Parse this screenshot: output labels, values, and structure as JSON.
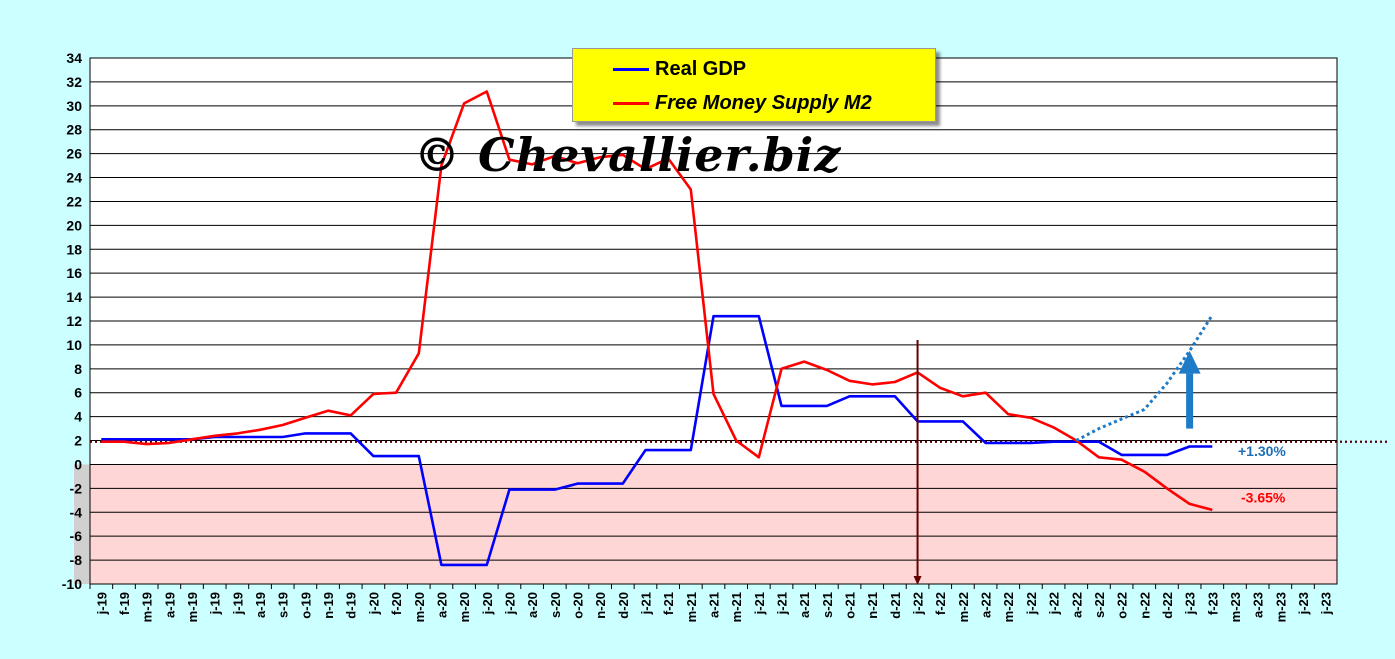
{
  "chart_data": {
    "type": "line",
    "categories": [
      "j-19",
      "f-19",
      "m-19",
      "a-19",
      "m-19",
      "j-19",
      "j-19",
      "a-19",
      "s-19",
      "o-19",
      "n-19",
      "d-19",
      "j-20",
      "f-20",
      "m-20",
      "a-20",
      "m-20",
      "j-20",
      "j-20",
      "a-20",
      "s-20",
      "o-20",
      "n-20",
      "d-20",
      "j-21",
      "f-21",
      "m-21",
      "a-21",
      "m-21",
      "j-21",
      "j-21",
      "a-21",
      "s-21",
      "o-21",
      "n-21",
      "d-21",
      "j-22",
      "f-22",
      "m-22",
      "a-22",
      "m-22",
      "j-22",
      "j-22",
      "a-22",
      "s-22",
      "o-22",
      "n-22",
      "d-22",
      "j-23",
      "f-23",
      "m-23",
      "a-23",
      "m-23",
      "j-23",
      "j-23"
    ],
    "ylim": [
      -10,
      34
    ],
    "yticks": [
      34,
      32,
      30,
      28,
      26,
      24,
      22,
      20,
      18,
      16,
      14,
      12,
      10,
      8,
      6,
      4,
      2,
      0,
      -2,
      -4,
      -6,
      -8,
      -10
    ],
    "reference_line": 1.9,
    "event_marker_category": "j-22",
    "series": [
      {
        "name": "Real GDP",
        "color": "#0000ff",
        "values": [
          2.1,
          2.1,
          2.1,
          2.1,
          2.1,
          2.3,
          2.3,
          2.3,
          2.3,
          2.6,
          2.6,
          2.6,
          0.7,
          0.7,
          0.7,
          -8.4,
          -8.4,
          -8.4,
          -2.1,
          -2.1,
          -2.1,
          -1.6,
          -1.6,
          -1.6,
          1.2,
          1.2,
          1.2,
          12.4,
          12.4,
          12.4,
          4.9,
          4.9,
          4.9,
          5.7,
          5.7,
          5.7,
          3.6,
          3.6,
          3.6,
          1.8,
          1.8,
          1.8,
          1.9,
          1.9,
          1.9,
          0.8,
          0.8,
          0.8,
          1.5,
          1.5,
          null,
          null,
          null,
          null,
          null
        ]
      },
      {
        "name": "Free Money Supply M2",
        "color": "#ff0000",
        "values": [
          1.9,
          1.9,
          1.7,
          1.8,
          2.1,
          2.4,
          2.6,
          2.9,
          3.3,
          3.9,
          4.5,
          4.1,
          5.9,
          6.0,
          9.3,
          25.0,
          30.2,
          31.2,
          25.5,
          25.1,
          25.8,
          25.2,
          25.7,
          25.9,
          24.7,
          25.6,
          23.0,
          5.9,
          2.0,
          0.6,
          8.0,
          8.6,
          7.9,
          7.0,
          6.7,
          6.9,
          7.7,
          6.4,
          5.7,
          6.0,
          4.2,
          3.9,
          3.1,
          2.0,
          0.6,
          0.4,
          -0.6,
          -2.0,
          -3.3,
          -3.8,
          null,
          null,
          null,
          null,
          null
        ]
      }
    ],
    "projection": {
      "color": "#1e7bc8",
      "x_start": 43.5,
      "points": [
        [
          43.5,
          2.0
        ],
        [
          44.5,
          3.0
        ],
        [
          45.5,
          3.8
        ],
        [
          46.5,
          4.6
        ],
        [
          47.5,
          6.8
        ],
        [
          48.5,
          9.5
        ],
        [
          49.5,
          12.5
        ]
      ]
    },
    "annotations": [
      {
        "text": "+1.30%",
        "color": "#1e6fb5"
      },
      {
        "text": "-3.65%",
        "color": "#ff0000"
      }
    ],
    "legend": {
      "gdp_label": "Real GDP",
      "m2_label": "Free Money Supply M2"
    },
    "watermark": "© Chevallier.biz"
  }
}
